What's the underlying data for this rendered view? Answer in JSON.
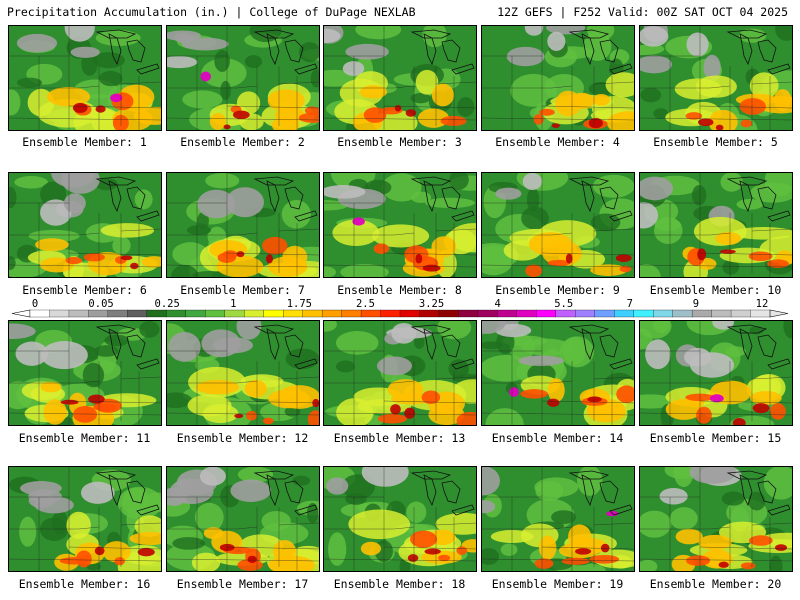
{
  "header": {
    "title": "Precipitation Accumulation (in.) | College of DuPage NEXLAB",
    "run_info": "12Z GEFS | F252 Valid: 00Z SAT OCT 04 2025"
  },
  "colorbar": {
    "labels": [
      "0",
      "0.05",
      "0.25",
      "1",
      "1.75",
      "2.5",
      "3.25",
      "4",
      "5.5",
      "7",
      "9",
      "12"
    ],
    "colors": [
      "#ffffff",
      "#d9d9d9",
      "#bdbdbd",
      "#9e9e9e",
      "#7f7f7f",
      "#5f5f5f",
      "#1f6f1f",
      "#2f8f2f",
      "#3fa83f",
      "#5fbf3f",
      "#9fd83f",
      "#d8ef2f",
      "#ffff00",
      "#ffe000",
      "#ffc000",
      "#ff9f00",
      "#ff7f00",
      "#ff5000",
      "#ff2000",
      "#e00000",
      "#b00000",
      "#8f0000",
      "#8f003f",
      "#a0005f",
      "#c0008f",
      "#e000c0",
      "#ff00ff",
      "#c060ff",
      "#a080ff",
      "#6fa0ff",
      "#3fd0ff",
      "#3ff0ff",
      "#7fd8e8",
      "#9fbfc8",
      "#aaaaaa",
      "#bcbcbc",
      "#cfcfcf",
      "#e5e5e5"
    ]
  },
  "members": [
    {
      "label": "Ensemble Member: 1"
    },
    {
      "label": "Ensemble Member: 2"
    },
    {
      "label": "Ensemble Member: 3"
    },
    {
      "label": "Ensemble Member: 4"
    },
    {
      "label": "Ensemble Member: 5"
    },
    {
      "label": "Ensemble Member: 6"
    },
    {
      "label": "Ensemble Member: 7"
    },
    {
      "label": "Ensemble Member: 8"
    },
    {
      "label": "Ensemble Member: 9"
    },
    {
      "label": "Ensemble Member: 10"
    },
    {
      "label": "Ensemble Member: 11"
    },
    {
      "label": "Ensemble Member: 12"
    },
    {
      "label": "Ensemble Member: 13"
    },
    {
      "label": "Ensemble Member: 14"
    },
    {
      "label": "Ensemble Member: 15"
    },
    {
      "label": "Ensemble Member: 16"
    },
    {
      "label": "Ensemble Member: 17"
    },
    {
      "label": "Ensemble Member: 18"
    },
    {
      "label": "Ensemble Member: 19"
    },
    {
      "label": "Ensemble Member: 20"
    }
  ]
}
